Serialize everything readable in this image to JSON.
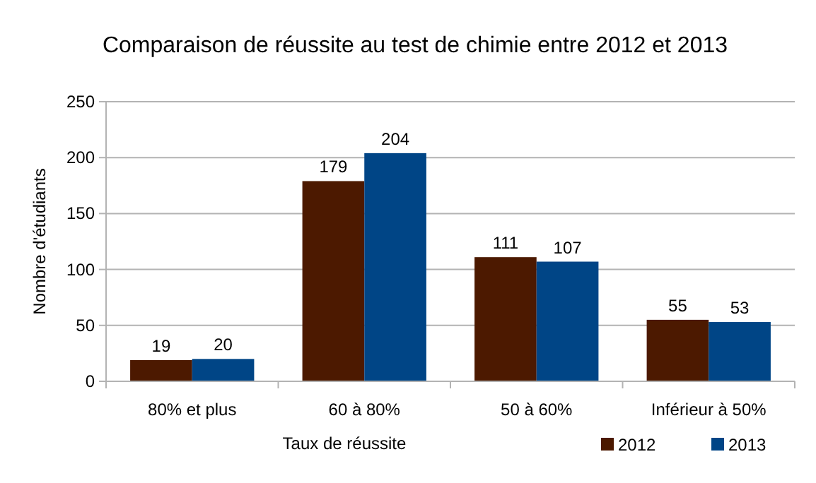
{
  "chart_data": {
    "type": "bar",
    "title": "Comparaison de réussite au test de chimie entre 2012 et 2013",
    "xlabel": "Taux de réussite",
    "ylabel": "Nombre d'étudiants",
    "categories": [
      "80% et plus",
      "60 à 80%",
      "50 à 60%",
      "Inférieur à 50%"
    ],
    "series": [
      {
        "name": "2012",
        "color": "#4c1900",
        "values": [
          19,
          179,
          111,
          55
        ]
      },
      {
        "name": "2013",
        "color": "#004586",
        "values": [
          20,
          204,
          107,
          53
        ]
      }
    ],
    "ylim": [
      0,
      250
    ],
    "yticks": [
      0,
      50,
      100,
      150,
      200,
      250
    ],
    "grid": "y",
    "legend": "bottom right",
    "data_labels": true
  }
}
